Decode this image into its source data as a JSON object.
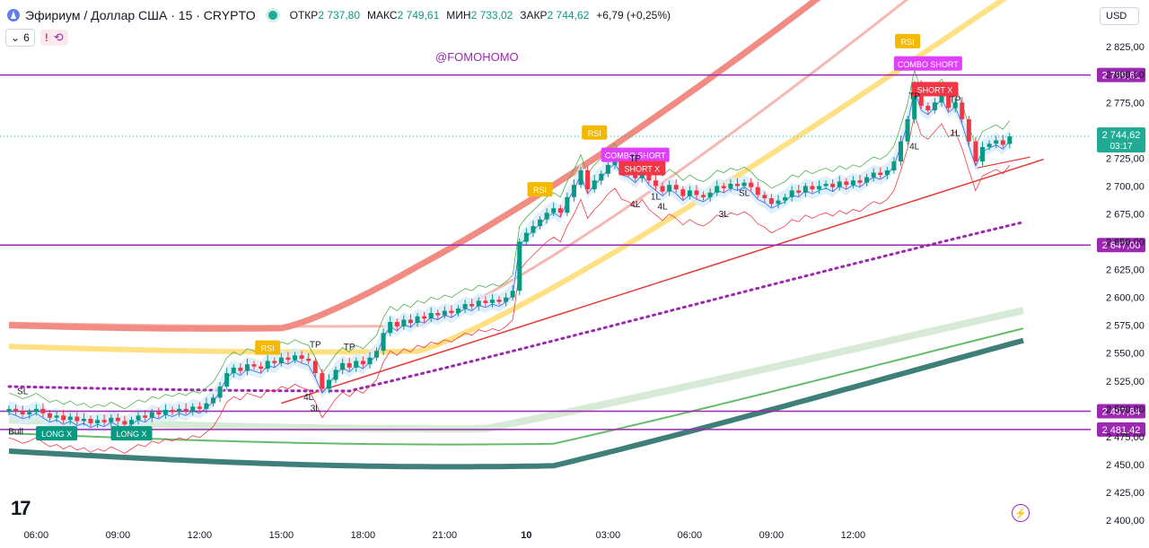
{
  "header": {
    "title": "Эфириум / Доллар США · 15 · CRYPTO",
    "open_label": "ОТКР",
    "open": "2 737,80",
    "high_label": "МАКС",
    "high": "2 749,61",
    "low_label": "МИН",
    "low": "2 733,02",
    "close_label": "ЗАКР",
    "close": "2 744,62",
    "change": "+6,79 (+0,25%)",
    "indicator_count": "6",
    "currency": "USD"
  },
  "watermark": "@FOMOHOMO",
  "colors": {
    "up": "#089981",
    "down": "#f23645",
    "purple": "#9c27b0",
    "ema_red": "#f28b82",
    "ema_yellow": "#ffe082",
    "ema_teal": "#3f7f7a",
    "ema_green": "#66bb6a"
  },
  "chart_data": {
    "type": "candlestick",
    "symbol": "ETHUSD",
    "timeframe": "15",
    "x_ticks": [
      "06:00",
      "09:00",
      "12:00",
      "15:00",
      "18:00",
      "21:00",
      "10",
      "03:00",
      "06:00",
      "09:00",
      "12:00"
    ],
    "y_ticks": [
      "2 825,00",
      "2 800,00",
      "2 775,00",
      "2 750,00",
      "2 725,00",
      "2 700,00",
      "2 675,00",
      "2 650,00",
      "2 625,00",
      "2 600,00",
      "2 575,00",
      "2 550,00",
      "2 525,00",
      "2 500,00",
      "2 475,00",
      "2 450,00",
      "2 425,00",
      "2 400,00"
    ],
    "y_tick_values": [
      2825,
      2800,
      2775,
      2750,
      2725,
      2700,
      2675,
      2650,
      2625,
      2600,
      2575,
      2550,
      2525,
      2500,
      2475,
      2450,
      2425,
      2400
    ],
    "ylim": [
      2396,
      2838
    ],
    "bar_range": [
      0,
      175
    ],
    "x_tick_bars": [
      4,
      16,
      28,
      40,
      52,
      64,
      76,
      88,
      100,
      112,
      124
    ],
    "horizontal_levels": [
      {
        "value": 2799.61,
        "label": "2 799,61"
      },
      {
        "value": 2647.0,
        "label": "2 647,00"
      },
      {
        "value": 2497.84,
        "label": "2 497,84"
      },
      {
        "value": 2481.42,
        "label": "2 481,42"
      }
    ],
    "current_price": {
      "value": 2744.62,
      "label": "2 744,62",
      "countdown": "03:17"
    },
    "candles_close": [
      2500,
      2498,
      2495,
      2497,
      2500,
      2496,
      2492,
      2494,
      2490,
      2493,
      2489,
      2491,
      2487,
      2490,
      2488,
      2492,
      2489,
      2486,
      2490,
      2494,
      2492,
      2497,
      2495,
      2499,
      2497,
      2500,
      2498,
      2502,
      2500,
      2505,
      2510,
      2520,
      2532,
      2537,
      2534,
      2540,
      2538,
      2536,
      2543,
      2541,
      2546,
      2544,
      2548,
      2545,
      2543,
      2532,
      2518,
      2526,
      2535,
      2541,
      2537,
      2543,
      2540,
      2546,
      2552,
      2568,
      2578,
      2574,
      2580,
      2577,
      2583,
      2581,
      2586,
      2584,
      2588,
      2586,
      2590,
      2594,
      2592,
      2597,
      2595,
      2598,
      2596,
      2600,
      2606,
      2650,
      2658,
      2664,
      2670,
      2676,
      2680,
      2676,
      2690,
      2701,
      2714,
      2697,
      2705,
      2711,
      2719,
      2724,
      2714,
      2712,
      2707,
      2714,
      2705,
      2700,
      2695,
      2701,
      2697,
      2691,
      2696,
      2692,
      2690,
      2694,
      2700,
      2698,
      2702,
      2700,
      2703,
      2699,
      2692,
      2689,
      2684,
      2687,
      2690,
      2696,
      2694,
      2700,
      2697,
      2700,
      2702,
      2699,
      2704,
      2701,
      2705,
      2703,
      2708,
      2712,
      2710,
      2714,
      2722,
      2740,
      2760,
      2790,
      2772,
      2768,
      2775,
      2782,
      2770,
      2775,
      2760,
      2740,
      2722,
      2735,
      2738,
      2741,
      2737,
      2744.62
    ],
    "candles_open": [
      2497,
      2500,
      2498,
      2495,
      2497,
      2500,
      2496,
      2492,
      2494,
      2490,
      2493,
      2489,
      2491,
      2487,
      2490,
      2488,
      2492,
      2489,
      2486,
      2490,
      2494,
      2492,
      2497,
      2495,
      2499,
      2497,
      2500,
      2498,
      2502,
      2500,
      2505,
      2510,
      2520,
      2532,
      2537,
      2534,
      2540,
      2538,
      2536,
      2543,
      2541,
      2546,
      2544,
      2548,
      2545,
      2543,
      2532,
      2518,
      2526,
      2535,
      2541,
      2537,
      2543,
      2540,
      2546,
      2552,
      2568,
      2578,
      2574,
      2580,
      2577,
      2583,
      2581,
      2586,
      2584,
      2588,
      2586,
      2590,
      2594,
      2592,
      2597,
      2595,
      2598,
      2596,
      2600,
      2606,
      2650,
      2658,
      2664,
      2670,
      2676,
      2680,
      2676,
      2690,
      2701,
      2714,
      2697,
      2705,
      2711,
      2719,
      2724,
      2714,
      2712,
      2707,
      2714,
      2705,
      2700,
      2695,
      2701,
      2697,
      2691,
      2696,
      2692,
      2690,
      2694,
      2700,
      2698,
      2702,
      2700,
      2703,
      2699,
      2692,
      2689,
      2684,
      2687,
      2690,
      2696,
      2694,
      2700,
      2697,
      2700,
      2702,
      2699,
      2704,
      2701,
      2705,
      2703,
      2708,
      2712,
      2710,
      2714,
      2722,
      2740,
      2760,
      2790,
      2772,
      2768,
      2775,
      2782,
      2770,
      2775,
      2760,
      2740,
      2722,
      2735,
      2738,
      2741,
      2737.8
    ],
    "signals": [
      {
        "text": "LONG X",
        "bar": 7,
        "price": 2478,
        "color": "#089981"
      },
      {
        "text": "LONG X",
        "bar": 18,
        "price": 2478,
        "color": "#089981"
      },
      {
        "text": "RSI",
        "bar": 38,
        "price": 2555,
        "color": "#f5b800"
      },
      {
        "text": "RSI",
        "bar": 78,
        "price": 2697,
        "color": "#f5b800"
      },
      {
        "text": "RSI",
        "bar": 86,
        "price": 2748,
        "color": "#f5b800"
      },
      {
        "text": "COMBO SHORT",
        "bar": 92,
        "price": 2728,
        "color": "#e040fb"
      },
      {
        "text": "SHORT X",
        "bar": 93,
        "price": 2716,
        "color": "#f23645"
      },
      {
        "text": "COMBO SHORT",
        "bar": 135,
        "price": 2810,
        "color": "#e040fb"
      },
      {
        "text": "SHORT X",
        "bar": 136,
        "price": 2787,
        "color": "#f23645"
      },
      {
        "text": "RSI",
        "bar": 132,
        "price": 2830,
        "color": "#f5b800"
      }
    ],
    "labels": [
      {
        "text": "SL",
        "bar": 2,
        "price": 2513
      },
      {
        "text": "TP",
        "bar": 45,
        "price": 2555
      },
      {
        "text": "TP",
        "bar": 50,
        "price": 2553
      },
      {
        "text": "4L",
        "bar": 44,
        "price": 2508
      },
      {
        "text": "3L",
        "bar": 45,
        "price": 2498
      },
      {
        "text": "TP",
        "bar": 92,
        "price": 2722
      },
      {
        "text": "4L",
        "bar": 92,
        "price": 2681
      },
      {
        "text": "1L",
        "bar": 95,
        "price": 2688
      },
      {
        "text": "4L",
        "bar": 96,
        "price": 2679
      },
      {
        "text": "SL",
        "bar": 108,
        "price": 2691
      },
      {
        "text": "3L",
        "bar": 105,
        "price": 2672
      },
      {
        "text": "TP",
        "bar": 133,
        "price": 2778
      },
      {
        "text": "TP",
        "bar": 139,
        "price": 2775
      },
      {
        "text": "4L",
        "bar": 133,
        "price": 2733
      },
      {
        "text": "1L",
        "bar": 139,
        "price": 2745
      },
      {
        "text": "Bull",
        "bar": 1,
        "price": 2477
      }
    ]
  }
}
